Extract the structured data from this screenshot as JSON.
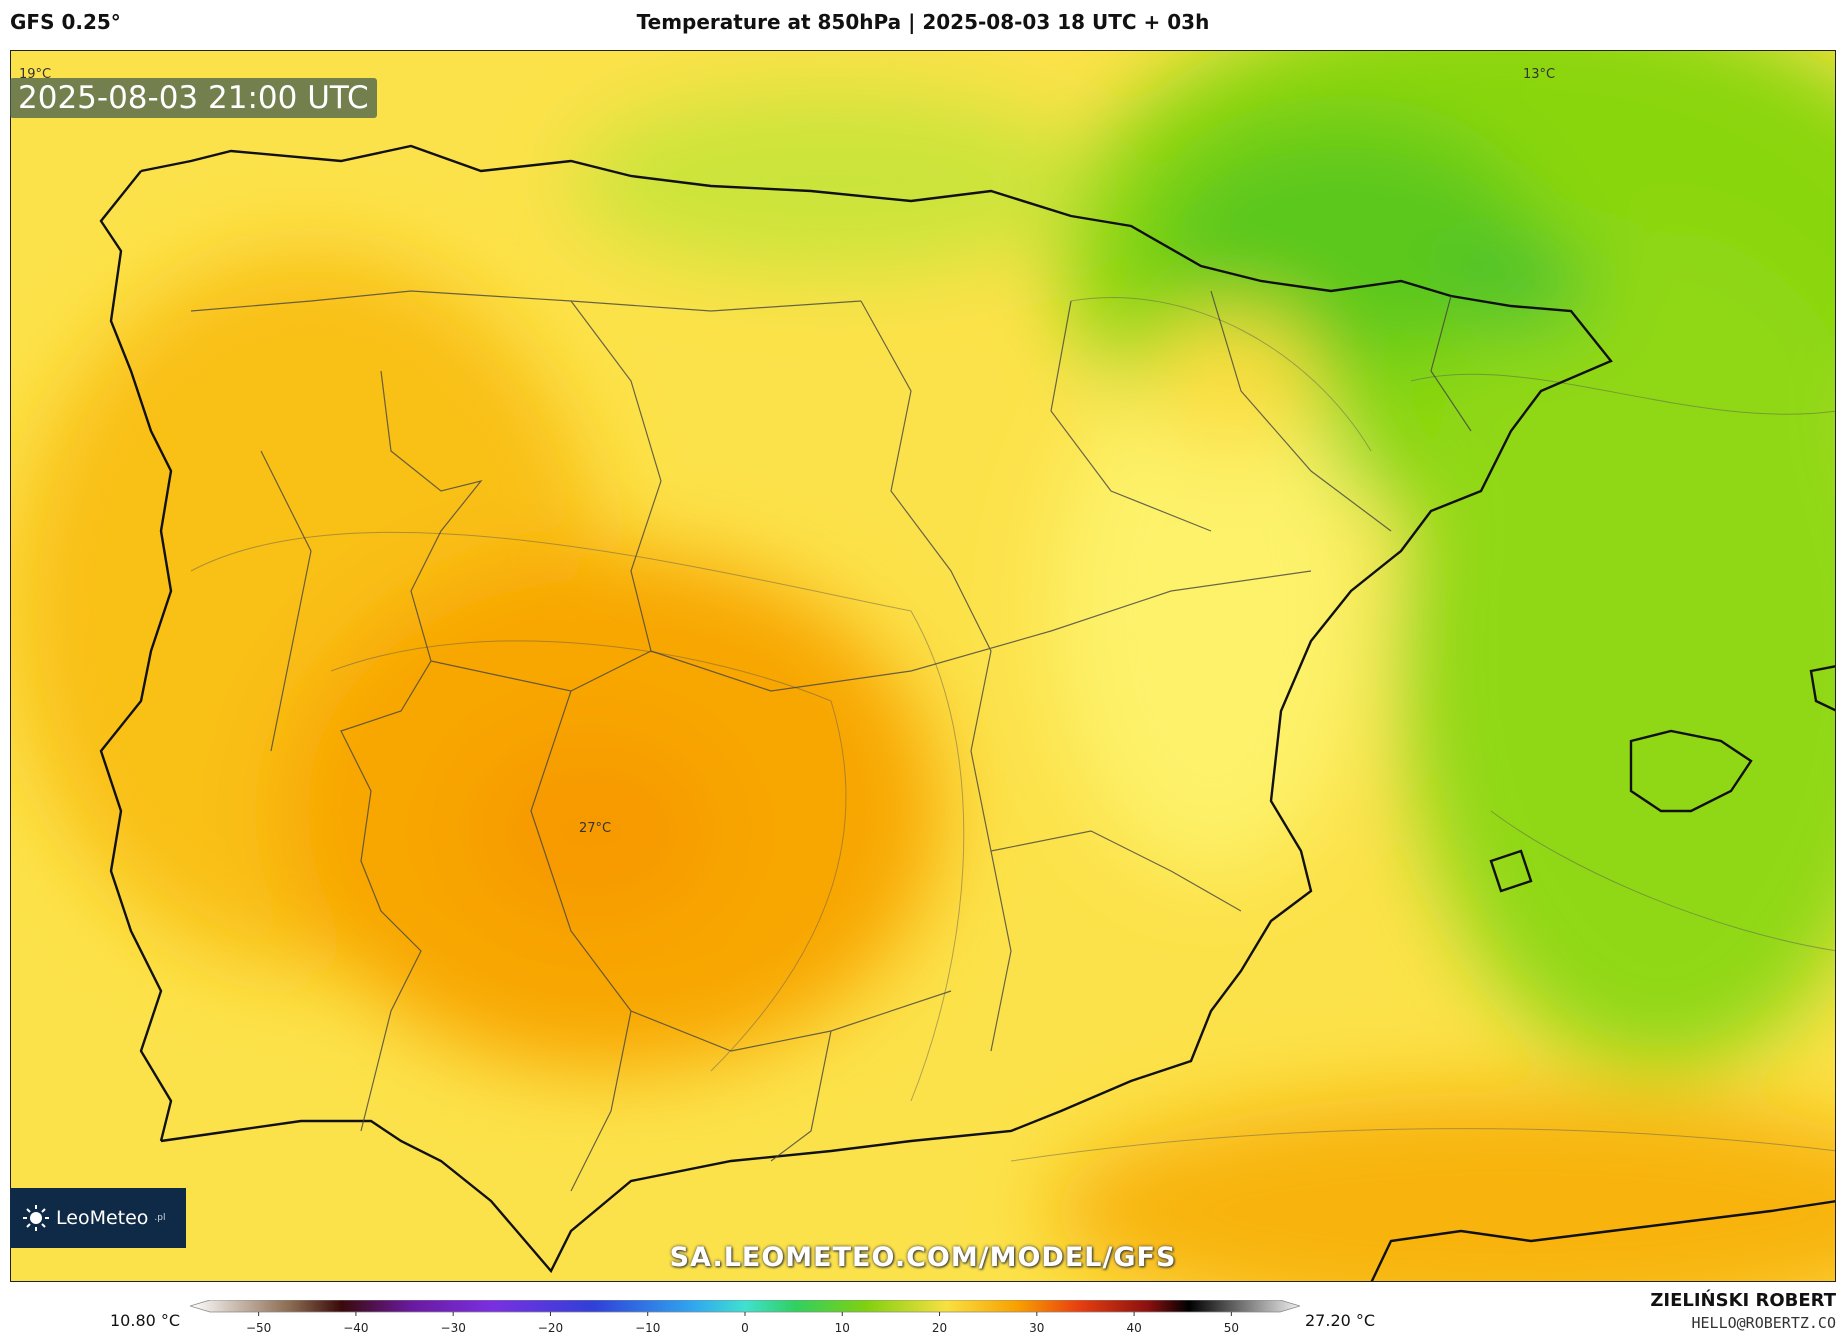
{
  "header": {
    "model": "GFS 0.25°",
    "title": "Temperature at 850hPa | 2025-08-03 18 UTC + 03h"
  },
  "map": {
    "valid_time": "2025-08-03 21:00 UTC",
    "labels": {
      "nw_corner": "19°C",
      "northeast": "13°C",
      "center": "27°C"
    },
    "watermark": "SA.LEOMETEO.COM/MODEL/GFS",
    "logo": {
      "name": "LeoMeteo",
      "suffix": ".pl",
      "icon": "sun-icon"
    }
  },
  "colorbar": {
    "min_label": "10.80 °C",
    "max_label": "27.20 °C",
    "ticks": [
      -50,
      -40,
      -30,
      -20,
      -10,
      0,
      10,
      20,
      30,
      40,
      50
    ],
    "stops": [
      {
        "t": -55,
        "c": "#ffffff"
      },
      {
        "t": -45,
        "c": "#8a6a50"
      },
      {
        "t": -40,
        "c": "#3a0a0a"
      },
      {
        "t": -33,
        "c": "#6a1aa0"
      },
      {
        "t": -25,
        "c": "#7a30e0"
      },
      {
        "t": -15,
        "c": "#3040d8"
      },
      {
        "t": -5,
        "c": "#30a8f0"
      },
      {
        "t": 0,
        "c": "#40e0d0"
      },
      {
        "t": 5,
        "c": "#30d060"
      },
      {
        "t": 12,
        "c": "#80d010"
      },
      {
        "t": 20,
        "c": "#f8e040"
      },
      {
        "t": 27,
        "c": "#f8a000"
      },
      {
        "t": 33,
        "c": "#e84010"
      },
      {
        "t": 40,
        "c": "#8a1010"
      },
      {
        "t": 44,
        "c": "#000000"
      },
      {
        "t": 55,
        "c": "#f0f0f0"
      }
    ]
  },
  "footer": {
    "author": "ZIELIŃSKI ROBERT",
    "email": "HELLO@ROBERTZ.CO"
  }
}
